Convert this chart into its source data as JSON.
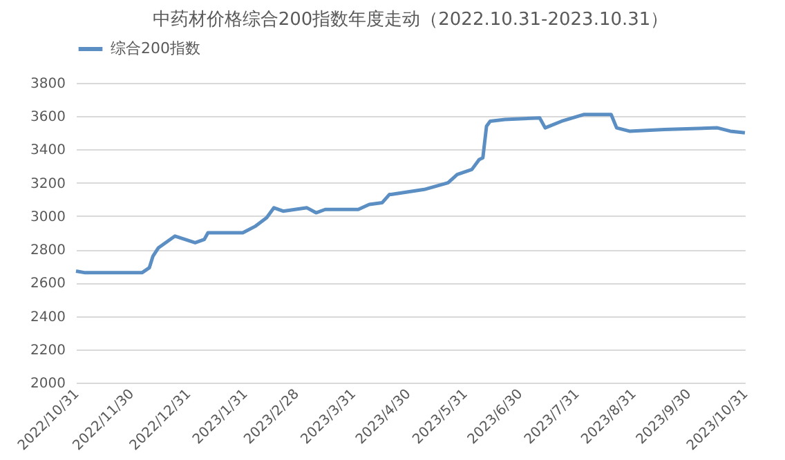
{
  "chart_data": {
    "type": "line",
    "title": "中药材价格综合200指数年度走动（2022.10.31-2023.10.31）",
    "x": [
      "2022-10-31",
      "2022-11-05",
      "2022-12-06",
      "2022-12-10",
      "2022-12-12",
      "2022-12-15",
      "2022-12-24",
      "2023-01-04",
      "2023-01-09",
      "2023-01-11",
      "2023-01-30",
      "2023-02-06",
      "2023-02-12",
      "2023-02-16",
      "2023-02-21",
      "2023-03-06",
      "2023-03-11",
      "2023-03-16",
      "2023-04-03",
      "2023-04-09",
      "2023-04-16",
      "2023-04-20",
      "2023-04-21",
      "2023-05-09",
      "2023-05-22",
      "2023-05-27",
      "2023-06-04",
      "2023-06-08",
      "2023-06-10",
      "2023-06-12",
      "2023-06-14",
      "2023-06-22",
      "2023-07-11",
      "2023-07-14",
      "2023-07-23",
      "2023-08-04",
      "2023-08-19",
      "2023-08-22",
      "2023-08-29",
      "2023-09-17",
      "2023-10-16",
      "2023-10-23",
      "2023-10-31"
    ],
    "series": [
      {
        "name": "综合200指数",
        "color": "#5b8ec2",
        "values": [
          2670,
          2660,
          2660,
          2690,
          2760,
          2810,
          2880,
          2840,
          2860,
          2900,
          2900,
          2940,
          2990,
          3050,
          3030,
          3050,
          3020,
          3040,
          3040,
          3070,
          3080,
          3130,
          3130,
          3160,
          3200,
          3250,
          3280,
          3340,
          3350,
          3540,
          3570,
          3580,
          3590,
          3530,
          3570,
          3610,
          3610,
          3530,
          3510,
          3520,
          3530,
          3510,
          3500
        ]
      }
    ],
    "ylim": [
      2000,
      3800
    ],
    "yticks": [
      2000,
      2200,
      2400,
      2600,
      2800,
      3000,
      3200,
      3400,
      3600,
      3800
    ],
    "xlim": [
      "2022-10-31",
      "2023-10-31"
    ],
    "xticks": [
      {
        "value": "2022-10-31",
        "label": "2022/10/31"
      },
      {
        "value": "2022-11-30",
        "label": "2022/11/30"
      },
      {
        "value": "2022-12-31",
        "label": "2022/12/31"
      },
      {
        "value": "2023-01-31",
        "label": "2023/1/31"
      },
      {
        "value": "2023-02-28",
        "label": "2023/2/28"
      },
      {
        "value": "2023-03-31",
        "label": "2023/3/31"
      },
      {
        "value": "2023-04-30",
        "label": "2023/4/30"
      },
      {
        "value": "2023-05-31",
        "label": "2023/5/31"
      },
      {
        "value": "2023-06-30",
        "label": "2023/6/30"
      },
      {
        "value": "2023-07-31",
        "label": "2023/7/31"
      },
      {
        "value": "2023-08-31",
        "label": "2023/8/31"
      },
      {
        "value": "2023-09-30",
        "label": "2023/9/30"
      },
      {
        "value": "2023-10-31",
        "label": "2023/10/31"
      }
    ],
    "grid": "y",
    "legend": "top",
    "marker": "none",
    "line_style": "solid"
  }
}
